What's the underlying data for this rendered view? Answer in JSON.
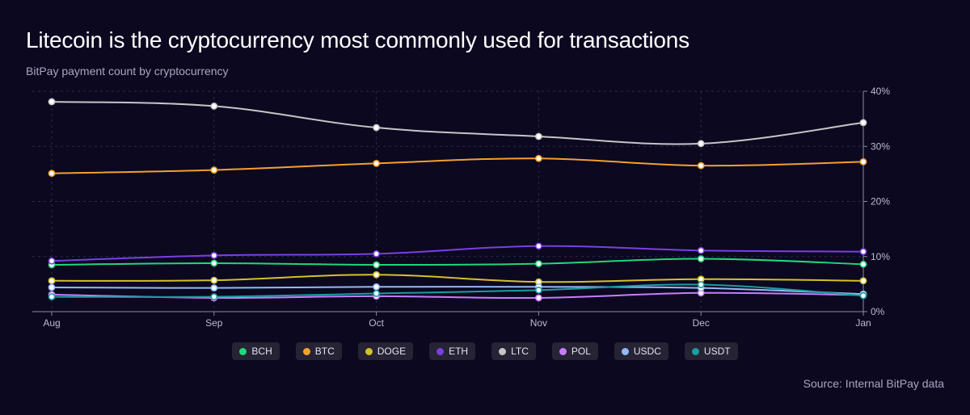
{
  "header": {
    "title": "Litecoin is the cryptocurrency most commonly used for transactions",
    "subtitle": "BitPay payment count by cryptocurrency"
  },
  "footer": {
    "source": "Source: Internal BitPay data"
  },
  "chart_data": {
    "type": "line",
    "title": "Litecoin is the cryptocurrency most commonly used for transactions",
    "subtitle": "BitPay payment count by cryptocurrency",
    "categories": [
      "Aug",
      "Sep",
      "Oct",
      "Nov",
      "Dec",
      "Jan"
    ],
    "y_ticks": [
      "0%",
      "10%",
      "20%",
      "30%",
      "40%"
    ],
    "ylim": [
      0,
      40
    ],
    "y_unit": "%",
    "y_axis_side": "right",
    "grid": true,
    "legend_position": "bottom",
    "series": [
      {
        "name": "BCH",
        "color": "#22d67a",
        "values": [
          8.5,
          8.8,
          8.5,
          8.7,
          9.6,
          8.6
        ]
      },
      {
        "name": "BTC",
        "color": "#f5a02e",
        "values": [
          25.1,
          25.7,
          26.9,
          27.8,
          26.5,
          27.2
        ]
      },
      {
        "name": "DOGE",
        "color": "#d4c226",
        "values": [
          5.6,
          5.7,
          6.7,
          5.4,
          5.9,
          5.6
        ]
      },
      {
        "name": "ETH",
        "color": "#7b3fe0",
        "values": [
          9.2,
          10.2,
          10.5,
          11.9,
          11.1,
          10.9
        ]
      },
      {
        "name": "LTC",
        "color": "#c6c6c6",
        "values": [
          38.1,
          37.3,
          33.4,
          31.8,
          30.5,
          34.3
        ]
      },
      {
        "name": "POL",
        "color": "#c77dff",
        "values": [
          3.1,
          2.5,
          2.8,
          2.5,
          3.4,
          3.0
        ]
      },
      {
        "name": "USDC",
        "color": "#94b9f5",
        "values": [
          4.4,
          4.3,
          4.5,
          4.5,
          4.3,
          3.2
        ]
      },
      {
        "name": "USDT",
        "color": "#1a9e9e",
        "values": [
          2.7,
          2.7,
          3.3,
          3.9,
          4.9,
          2.9
        ]
      }
    ]
  }
}
